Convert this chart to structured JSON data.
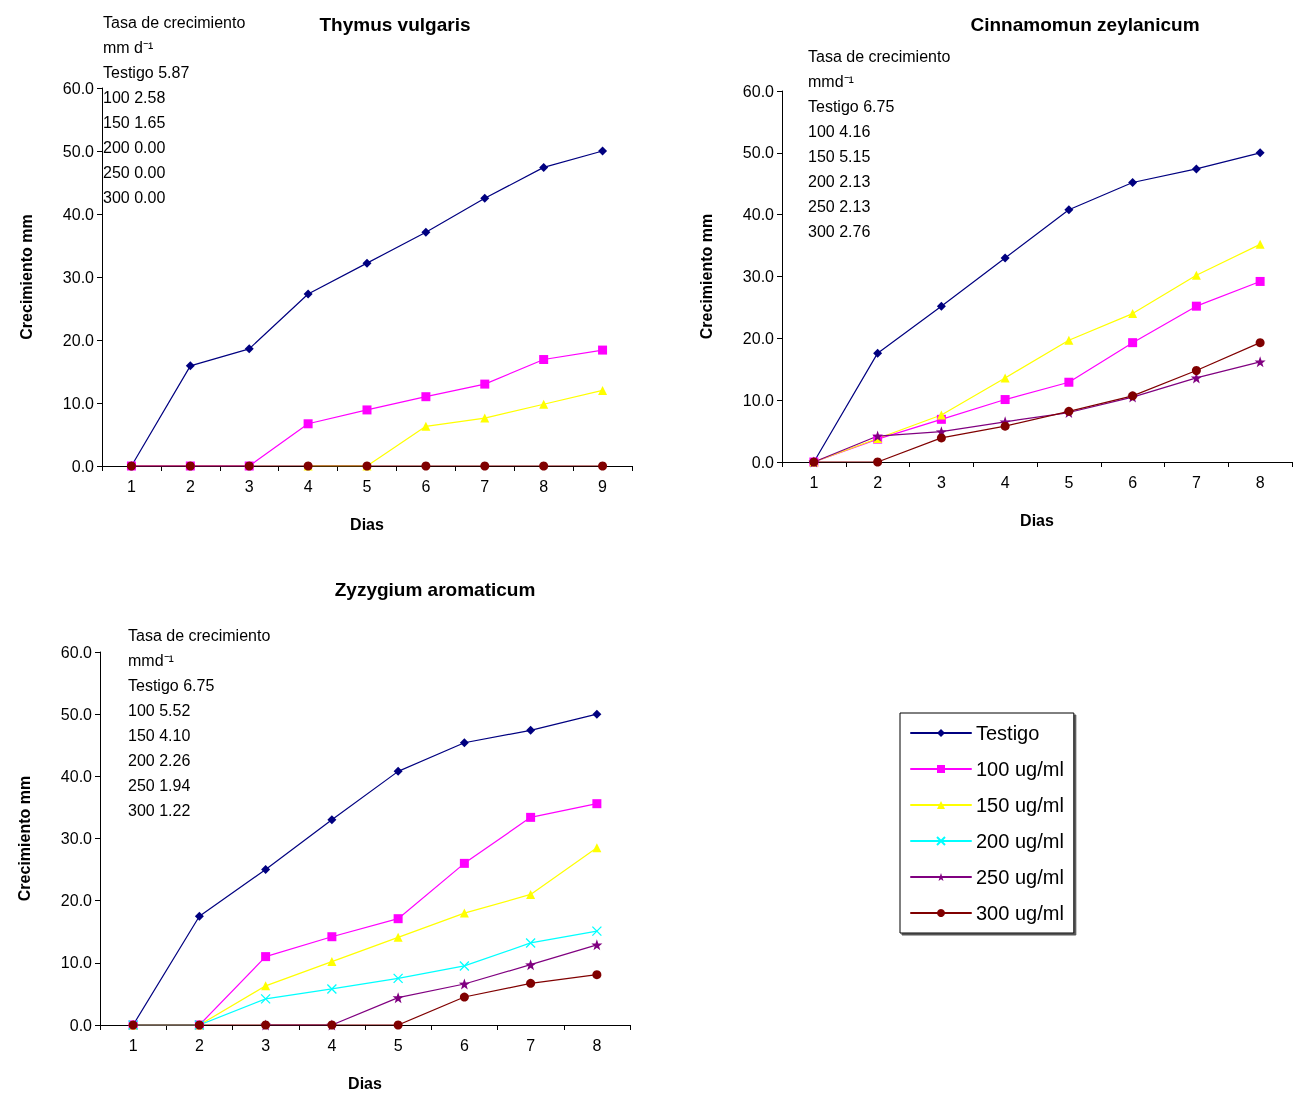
{
  "chart_data": [
    {
      "type": "line",
      "title": "Thymus vulgaris",
      "xlabel": "Dias",
      "ylabel": "Crecimiento mm",
      "categories": [
        "1",
        "2",
        "3",
        "4",
        "5",
        "6",
        "7",
        "8",
        "9"
      ],
      "ylim": [
        0,
        60
      ],
      "yticks": [
        {
          "value": 0,
          "label": "0.0"
        },
        {
          "value": 10,
          "label": "10.0"
        },
        {
          "value": 20,
          "label": "20.0"
        },
        {
          "value": 30,
          "label": "30.0"
        },
        {
          "value": 40,
          "label": "40.0"
        },
        {
          "value": 50,
          "label": "50.0"
        },
        {
          "value": 60,
          "label": "60.0"
        }
      ],
      "grid": false,
      "legend": false,
      "annotations": [
        "Tasa de crecimiento",
        "mm d⁻¹",
        "Testigo 5.87",
        "100 2.58",
        "150 1.65",
        "200 0.00",
        "250 0.00",
        "300 0.00"
      ],
      "series": [
        {
          "color": "#000080",
          "marker": "diamond",
          "values": [
            0,
            15.9,
            18.6,
            27.3,
            32.2,
            37.1,
            42.5,
            47.4,
            50.0
          ]
        },
        {
          "color": "#ff00ff",
          "marker": "square",
          "values": [
            0,
            0,
            0,
            6.7,
            8.9,
            11.0,
            13.0,
            16.9,
            18.4
          ]
        },
        {
          "color": "#ffff00",
          "marker": "triangle",
          "values": [
            null,
            null,
            null,
            0,
            0,
            6.3,
            7.6,
            9.8,
            12.0
          ]
        },
        {
          "color": "#800000",
          "marker": "circle",
          "values": [
            0,
            0,
            0,
            0,
            0,
            0,
            0,
            0,
            0
          ]
        }
      ]
    },
    {
      "type": "line",
      "title": "Cinnamomun zeylanicum",
      "xlabel": "Dias",
      "ylabel": "Crecimiento mm",
      "categories": [
        "1",
        "2",
        "3",
        "4",
        "5",
        "6",
        "7",
        "8"
      ],
      "ylim": [
        0,
        60
      ],
      "yticks": [
        {
          "value": 0,
          "label": "0.0"
        },
        {
          "value": 10,
          "label": "10.0"
        },
        {
          "value": 20,
          "label": "20.0"
        },
        {
          "value": 30,
          "label": "30.0"
        },
        {
          "value": 40,
          "label": "40.0"
        },
        {
          "value": 50,
          "label": "50.0"
        },
        {
          "value": 60,
          "label": "60.0"
        }
      ],
      "grid": false,
      "legend": false,
      "annotations": [
        "Tasa de crecimiento",
        "mmd⁻¹",
        "Testigo 6.75",
        "100 4.16",
        "150 5.15",
        "200 2.13",
        "250 2.13",
        "300 2.76"
      ],
      "series": [
        {
          "color": "#000080",
          "marker": "diamond",
          "values": [
            0,
            17.6,
            25.2,
            33.0,
            40.8,
            45.2,
            47.4,
            50.0
          ]
        },
        {
          "color": "#ff00ff",
          "marker": "square",
          "values": [
            0,
            3.7,
            6.9,
            10.1,
            12.9,
            19.3,
            25.2,
            29.2
          ]
        },
        {
          "color": "#ffff00",
          "marker": "triangle",
          "values": [
            0,
            3.8,
            7.6,
            13.6,
            19.7,
            24.0,
            30.2,
            35.2
          ]
        },
        {
          "color": "#800080",
          "marker": "star",
          "values": [
            0,
            4.2,
            4.9,
            6.5,
            8.0,
            10.5,
            13.6,
            16.2
          ]
        },
        {
          "color": "#800000",
          "marker": "circle",
          "values": [
            0,
            0,
            3.9,
            5.8,
            8.2,
            10.7,
            14.8,
            19.3
          ]
        }
      ]
    },
    {
      "type": "line",
      "title": "Zyzygium aromaticum",
      "xlabel": "Dias",
      "ylabel": "Crecimiento mm",
      "categories": [
        "1",
        "2",
        "3",
        "4",
        "5",
        "6",
        "7",
        "8"
      ],
      "ylim": [
        0,
        60
      ],
      "yticks": [
        {
          "value": 0,
          "label": "0.0"
        },
        {
          "value": 10,
          "label": "10.0"
        },
        {
          "value": 20,
          "label": "20.0"
        },
        {
          "value": 30,
          "label": "30.0"
        },
        {
          "value": 40,
          "label": "40.0"
        },
        {
          "value": 50,
          "label": "50.0"
        },
        {
          "value": 60,
          "label": "60.0"
        }
      ],
      "grid": false,
      "legend": "right",
      "annotations": [
        "Tasa de crecimiento",
        "mmd⁻¹",
        "Testigo 6.75",
        "100 5.52",
        "150 4.10",
        "200 2.26",
        "250 1.94",
        "300 1.22"
      ],
      "series": [
        {
          "name": "Testigo",
          "color": "#000080",
          "marker": "diamond",
          "values": [
            0,
            17.5,
            25.0,
            33.0,
            40.8,
            45.4,
            47.4,
            50.0
          ]
        },
        {
          "name": "100 ug/ml",
          "color": "#ff00ff",
          "marker": "square",
          "values": [
            0,
            0,
            11.0,
            14.2,
            17.1,
            26.0,
            33.4,
            35.6
          ]
        },
        {
          "name": "150 ug/ml",
          "color": "#ffff00",
          "marker": "triangle",
          "values": [
            0,
            0,
            6.3,
            10.2,
            14.1,
            18.0,
            21.0,
            28.5
          ]
        },
        {
          "name": "200 ug/ml",
          "color": "#00ffff",
          "marker": "cross",
          "values": [
            0,
            0,
            4.2,
            5.8,
            7.5,
            9.5,
            13.2,
            15.1
          ]
        },
        {
          "name": "250 ug/ml",
          "color": "#800080",
          "marker": "star",
          "values": [
            null,
            null,
            0,
            0,
            4.4,
            6.6,
            9.7,
            12.9
          ]
        },
        {
          "name": "300 ug/ml",
          "color": "#800000",
          "marker": "circle",
          "values": [
            0,
            0,
            0,
            0,
            0,
            4.5,
            6.7,
            8.1
          ]
        }
      ]
    }
  ]
}
